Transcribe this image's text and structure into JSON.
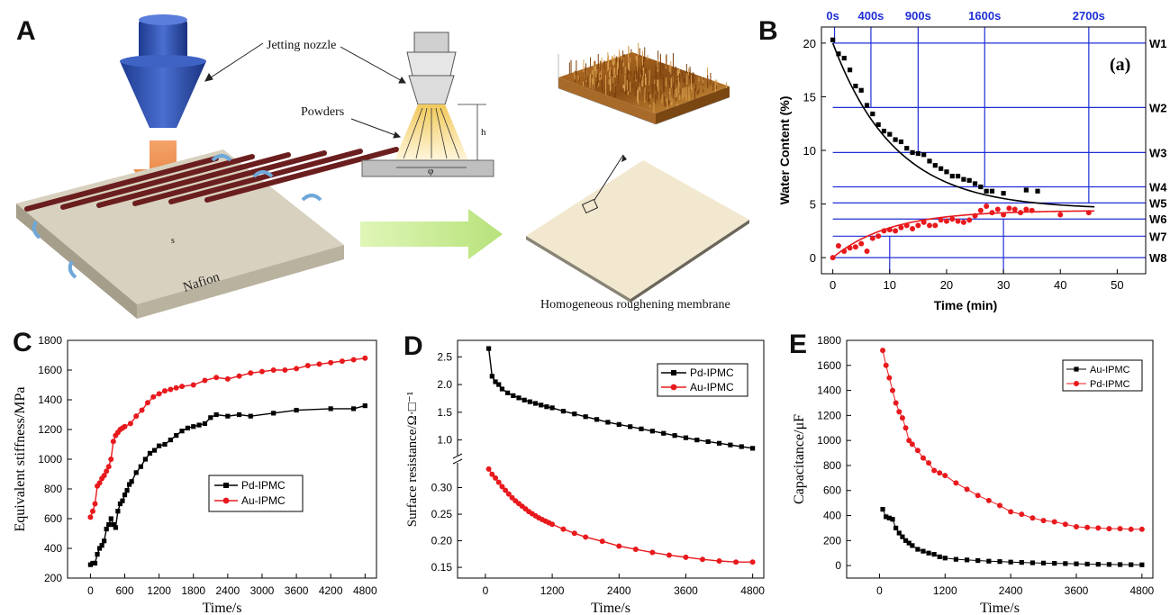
{
  "panels": {
    "A": "A",
    "B": "B",
    "C": "C",
    "D": "D",
    "E": "E"
  },
  "schematic": {
    "label_nozzle": "Jetting nozzle",
    "label_powders": "Powders",
    "label_h": "h",
    "label_phi": "φ",
    "label_s": "s",
    "label_nafion": "Nafion",
    "label_membrane": "Homogeneous roughening membrane",
    "colors": {
      "nozzle": "#2b4aa8",
      "arrow": "#e8843f",
      "rib": "#6b1e1e",
      "slab": "#c9c2b0",
      "green_arrow": "#c8ec8e"
    }
  },
  "chart_data": [
    {
      "id": "B",
      "type": "scatter",
      "annotation": "(a)",
      "xlabel": "Time (min)",
      "ylabel": "Water Content (%)",
      "xlim": [
        -2,
        55
      ],
      "ylim": [
        -1.5,
        21.5
      ],
      "xticks": [
        0,
        10,
        20,
        30,
        40,
        50
      ],
      "yticks": [
        0,
        5,
        10,
        15,
        20
      ],
      "top_labels": [
        {
          "label": "0s",
          "x": 0
        },
        {
          "label": "400s",
          "x": 6.7
        },
        {
          "label": "900s",
          "x": 15
        },
        {
          "label": "1600s",
          "x": 26.7
        },
        {
          "label": "2700s",
          "x": 45
        }
      ],
      "right_labels": [
        {
          "label": "W1",
          "y": 20.0
        },
        {
          "label": "W2",
          "y": 14.0
        },
        {
          "label": "W3",
          "y": 9.8
        },
        {
          "label": "W4",
          "y": 6.6
        },
        {
          "label": "W5",
          "y": 5.1
        },
        {
          "label": "W6",
          "y": 3.6
        },
        {
          "label": "W7",
          "y": 2.0
        },
        {
          "label": "W8",
          "y": 0.0
        }
      ],
      "vlines": [
        {
          "x": 0.3,
          "y": 20.0
        },
        {
          "x": 6.7,
          "y": 14.0
        },
        {
          "x": 15,
          "y": 9.8
        },
        {
          "x": 26.7,
          "y": 6.6
        },
        {
          "x": 45,
          "y": 5.1
        }
      ],
      "vlines_bottom": [
        {
          "x": 10,
          "y": 2.0
        },
        {
          "x": 30,
          "y": 3.6
        }
      ],
      "series": [
        {
          "color": "#000000",
          "marker": "square",
          "x": [
            0,
            1,
            2,
            3,
            4,
            5,
            6,
            7,
            8,
            9,
            10,
            11,
            12,
            13,
            14,
            15,
            16,
            17,
            18,
            19,
            20,
            21,
            22,
            23,
            24,
            25,
            26,
            27,
            28,
            30,
            34,
            36
          ],
          "y": [
            20.3,
            19.0,
            18.6,
            17.5,
            16.0,
            15.6,
            14.2,
            13.4,
            12.4,
            11.8,
            11.5,
            11.0,
            10.8,
            10.2,
            9.8,
            9.7,
            9.6,
            9.0,
            8.6,
            8.3,
            8.0,
            7.6,
            7.6,
            7.3,
            7.2,
            6.9,
            6.6,
            6.2,
            6.2,
            6.0,
            6.3,
            6.2
          ]
        },
        {
          "color": "#e8191d",
          "marker": "circle",
          "x": [
            0,
            1,
            2,
            3,
            4,
            5,
            6,
            7,
            8,
            9,
            10,
            11,
            12,
            13,
            14,
            15,
            16,
            17,
            18,
            19,
            20,
            21,
            22,
            23,
            24,
            25,
            26,
            27,
            28,
            29,
            30,
            31,
            32,
            33,
            34,
            35,
            40,
            45
          ],
          "y": [
            0,
            1.1,
            0.6,
            0.9,
            1.0,
            1.3,
            0.6,
            1.8,
            2.0,
            2.5,
            2.6,
            2.5,
            2.8,
            3.0,
            2.7,
            3.0,
            3.3,
            3.0,
            3.0,
            3.5,
            3.4,
            3.6,
            3.4,
            3.3,
            3.5,
            3.9,
            4.4,
            4.8,
            4.2,
            4.5,
            4.0,
            4.6,
            4.5,
            4.2,
            4.5,
            4.4,
            4.0,
            4.2
          ]
        }
      ],
      "fits": [
        {
          "color": "#000000",
          "x0": 0,
          "x1": 46,
          "A": 15.5,
          "tau": 11,
          "c": 4.5,
          "sign": "decay"
        },
        {
          "color": "#e8191d",
          "x0": 0,
          "x1": 46,
          "A": 4.4,
          "tau": 10,
          "c": 0,
          "sign": "rise"
        }
      ]
    },
    {
      "id": "C",
      "type": "line",
      "xlabel": "Time/s",
      "ylabel": "Equivalent stiffness/MPa",
      "xlim": [
        -400,
        5000
      ],
      "ylim": [
        200,
        1800
      ],
      "xticks": [
        0,
        600,
        1200,
        1800,
        2400,
        3000,
        3600,
        4200,
        4800
      ],
      "yticks": [
        200,
        400,
        600,
        800,
        1000,
        1200,
        1400,
        1600,
        1800
      ],
      "legend": [
        "Pd-IPMC",
        "Au-IPMC"
      ],
      "series": [
        {
          "name": "Pd-IPMC",
          "color": "#000000",
          "marker": "square",
          "x": [
            0,
            40,
            80,
            120,
            160,
            200,
            240,
            280,
            320,
            360,
            400,
            440,
            480,
            520,
            560,
            600,
            640,
            680,
            720,
            800,
            880,
            960,
            1040,
            1120,
            1200,
            1300,
            1400,
            1500,
            1600,
            1700,
            1800,
            1900,
            2000,
            2100,
            2200,
            2400,
            2600,
            2800,
            3200,
            3600,
            4200,
            4600,
            4800
          ],
          "y": [
            290,
            300,
            300,
            360,
            400,
            420,
            450,
            530,
            560,
            600,
            560,
            540,
            650,
            700,
            720,
            760,
            790,
            830,
            850,
            910,
            950,
            1000,
            1040,
            1060,
            1090,
            1100,
            1130,
            1160,
            1190,
            1210,
            1220,
            1230,
            1240,
            1280,
            1300,
            1290,
            1300,
            1290,
            1310,
            1330,
            1340,
            1340,
            1360
          ]
        },
        {
          "name": "Au-IPMC",
          "color": "#e8191d",
          "marker": "circle",
          "x": [
            0,
            40,
            80,
            120,
            160,
            200,
            240,
            280,
            320,
            360,
            400,
            440,
            480,
            520,
            560,
            600,
            700,
            800,
            900,
            1000,
            1100,
            1200,
            1300,
            1400,
            1500,
            1600,
            1800,
            2000,
            2200,
            2400,
            2600,
            2800,
            3000,
            3200,
            3400,
            3600,
            3800,
            4000,
            4200,
            4400,
            4600,
            4800
          ],
          "y": [
            610,
            650,
            700,
            820,
            840,
            870,
            890,
            920,
            950,
            1000,
            1120,
            1160,
            1180,
            1200,
            1210,
            1220,
            1240,
            1290,
            1330,
            1380,
            1420,
            1440,
            1460,
            1470,
            1480,
            1490,
            1500,
            1530,
            1550,
            1540,
            1560,
            1580,
            1590,
            1600,
            1600,
            1610,
            1630,
            1640,
            1650,
            1660,
            1670,
            1680
          ]
        }
      ]
    },
    {
      "id": "D",
      "type": "line",
      "xlabel": "Time/s",
      "ylabel": "Surface resistance/Ω·□⁻¹",
      "xlim": [
        -500,
        5000
      ],
      "ylim_upper": [
        0.75,
        2.7
      ],
      "ylim_lower": [
        0.14,
        0.35
      ],
      "xticks": [
        0,
        1200,
        2400,
        3600,
        4800
      ],
      "yticks_upper": [
        1.0,
        1.5,
        2.0,
        2.5
      ],
      "yticks_lower": [
        0.15,
        0.2,
        0.25,
        0.3
      ],
      "legend": [
        "Pd-IPMC",
        "Au-IPMC"
      ],
      "series": [
        {
          "name": "Pd-IPMC",
          "color": "#000000",
          "marker": "square",
          "x": [
            60,
            120,
            180,
            240,
            300,
            400,
            500,
            600,
            700,
            800,
            900,
            1000,
            1100,
            1200,
            1400,
            1600,
            1800,
            2000,
            2200,
            2400,
            2600,
            2800,
            3000,
            3200,
            3400,
            3600,
            3800,
            4000,
            4200,
            4400,
            4600,
            4800
          ],
          "y": [
            2.65,
            2.15,
            2.05,
            2.0,
            1.92,
            1.85,
            1.8,
            1.76,
            1.72,
            1.69,
            1.66,
            1.63,
            1.6,
            1.58,
            1.52,
            1.47,
            1.42,
            1.37,
            1.32,
            1.28,
            1.24,
            1.2,
            1.16,
            1.12,
            1.08,
            1.04,
            1.0,
            0.97,
            0.94,
            0.91,
            0.88,
            0.85
          ]
        },
        {
          "name": "Au-IPMC",
          "color": "#e8191d",
          "marker": "circle",
          "x": [
            60,
            120,
            180,
            240,
            300,
            360,
            420,
            480,
            540,
            600,
            660,
            720,
            780,
            840,
            900,
            960,
            1020,
            1080,
            1140,
            1200,
            1400,
            1600,
            1800,
            2100,
            2400,
            2700,
            3000,
            3300,
            3600,
            3900,
            4200,
            4500,
            4800
          ],
          "y": [
            0.335,
            0.325,
            0.318,
            0.31,
            0.302,
            0.295,
            0.288,
            0.281,
            0.275,
            0.27,
            0.265,
            0.26,
            0.255,
            0.251,
            0.247,
            0.243,
            0.24,
            0.237,
            0.234,
            0.231,
            0.222,
            0.214,
            0.207,
            0.199,
            0.19,
            0.184,
            0.178,
            0.173,
            0.169,
            0.165,
            0.162,
            0.16,
            0.16
          ]
        }
      ]
    },
    {
      "id": "E",
      "type": "line",
      "xlabel": "Time/s",
      "ylabel": "Capacitance/μF",
      "xlim": [
        -600,
        5000
      ],
      "ylim": [
        -100,
        1800
      ],
      "xticks": [
        0,
        1200,
        2400,
        3600,
        4800
      ],
      "yticks": [
        0,
        200,
        400,
        600,
        800,
        1000,
        1200,
        1400,
        1600,
        1800
      ],
      "legend": [
        "Au-IPMC",
        "Pd-IPMC"
      ],
      "series": [
        {
          "name": "Au-IPMC",
          "color": "#000000",
          "marker": "square",
          "x": [
            60,
            120,
            180,
            240,
            300,
            360,
            420,
            480,
            540,
            600,
            700,
            800,
            900,
            1000,
            1100,
            1200,
            1400,
            1600,
            1800,
            2000,
            2200,
            2400,
            2600,
            2800,
            3000,
            3200,
            3400,
            3600,
            3800,
            4000,
            4200,
            4400,
            4600,
            4800
          ],
          "y": [
            450,
            390,
            380,
            370,
            300,
            260,
            230,
            200,
            180,
            160,
            130,
            115,
            100,
            90,
            70,
            60,
            50,
            45,
            40,
            35,
            32,
            28,
            25,
            22,
            20,
            18,
            16,
            14,
            12,
            10,
            9,
            8,
            7,
            6
          ]
        },
        {
          "name": "Pd-IPMC",
          "color": "#e8191d",
          "marker": "circle",
          "x": [
            60,
            120,
            180,
            240,
            300,
            360,
            420,
            480,
            540,
            600,
            700,
            800,
            900,
            1000,
            1100,
            1200,
            1400,
            1600,
            1800,
            2000,
            2200,
            2400,
            2600,
            2800,
            3000,
            3200,
            3400,
            3600,
            3800,
            4000,
            4200,
            4400,
            4600,
            4800
          ],
          "y": [
            1720,
            1600,
            1500,
            1400,
            1300,
            1230,
            1180,
            1100,
            1000,
            970,
            920,
            860,
            820,
            760,
            740,
            720,
            660,
            610,
            560,
            520,
            480,
            430,
            410,
            380,
            360,
            350,
            330,
            310,
            305,
            300,
            295,
            295,
            290,
            290
          ]
        }
      ]
    }
  ]
}
